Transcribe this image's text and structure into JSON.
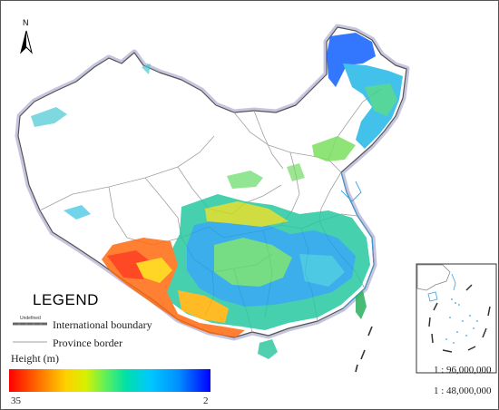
{
  "north_label": "N",
  "legend": {
    "title": "LEGEND",
    "small_note": "Undefined",
    "items": [
      {
        "label": "International boundary"
      },
      {
        "label": "Province border"
      }
    ],
    "ramp": {
      "title": "Height (m)",
      "min_label": "35",
      "max_label": "2",
      "colors": [
        "#ff0000",
        "#ff6a00",
        "#ffd000",
        "#5ef05a",
        "#00c8ff",
        "#0000ff"
      ]
    }
  },
  "inset": {
    "scale_label": "1 : 96,000,000"
  },
  "main_scale_label": "1 : 48,000,000",
  "colors": {
    "boundary": "#444444",
    "province": "#9a9a9a",
    "coast": "#3aa0e0",
    "shadow": "#b3b3d6"
  }
}
